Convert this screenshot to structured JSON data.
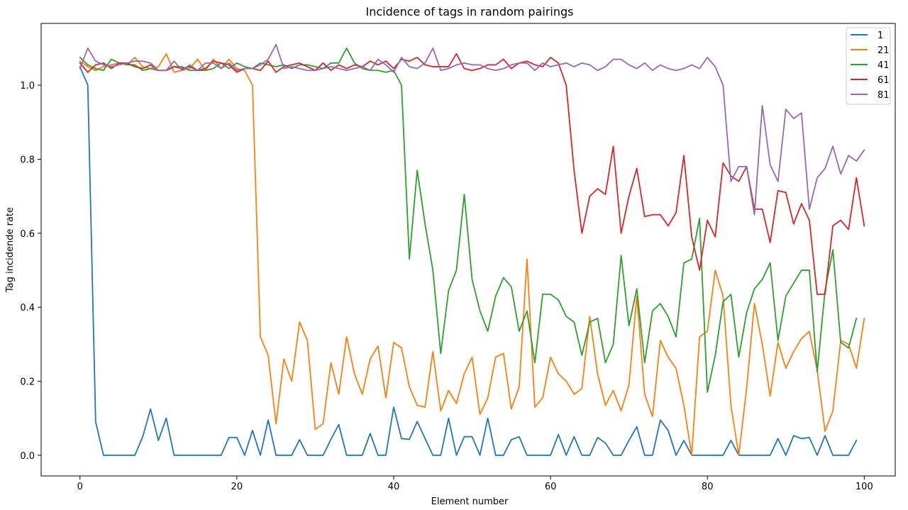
{
  "chart_data": {
    "type": "line",
    "title": "Incidence of tags in random pairings",
    "xlabel": "Element number",
    "ylabel": "Tag incidende rate",
    "xlim": [
      -4.95,
      103.95
    ],
    "ylim": [
      -0.056,
      1.167
    ],
    "xticks": [
      0,
      20,
      40,
      60,
      80,
      100
    ],
    "yticks": [
      0.0,
      0.2,
      0.4,
      0.6,
      0.8,
      1.0
    ],
    "xtick_labels": [
      "0",
      "20",
      "40",
      "60",
      "80",
      "100"
    ],
    "ytick_labels": [
      "0.0",
      "0.2",
      "0.4",
      "0.6",
      "0.8",
      "1.0"
    ],
    "grid": false,
    "legend": "top-right",
    "series": [
      {
        "name": "1",
        "color": "#1f77b4",
        "values": [
          1.05,
          1.0,
          0.09,
          0.0,
          0.0,
          0.0,
          0.0,
          0.0,
          0.05,
          0.125,
          0.04,
          0.1,
          0.0,
          0.0,
          0.0,
          0.0,
          0.0,
          0.0,
          0.0,
          0.048,
          0.048,
          0.0,
          0.067,
          0.0,
          0.095,
          0.0,
          0.0,
          0.0,
          0.042,
          0.0,
          0.0,
          0.0,
          0.043,
          0.083,
          0.0,
          0.0,
          0.0,
          0.059,
          0.0,
          0.0,
          0.13,
          0.045,
          0.043,
          0.091,
          0.045,
          0.0,
          0.0,
          0.1,
          0.0,
          0.05,
          0.05,
          0.0,
          0.1,
          0.0,
          0.0,
          0.042,
          0.05,
          0.0,
          0.0,
          0.0,
          0.0,
          0.056,
          0.0,
          0.05,
          0.0,
          0.0,
          0.048,
          0.033,
          0.0,
          0.0,
          0.04,
          0.077,
          0.0,
          0.0,
          0.095,
          0.067,
          0.0,
          0.04,
          0.0,
          0.0,
          0.0,
          0.0,
          0.0,
          0.04,
          0.0,
          0.0,
          0.0,
          0.0,
          0.0,
          0.045,
          0.0,
          0.053,
          0.045,
          0.048,
          0.0,
          0.053,
          0.0,
          0.0,
          0.0,
          0.04
        ]
      },
      {
        "name": "21",
        "color": "#ff7f0e",
        "values": [
          1.065,
          1.05,
          1.04,
          1.05,
          1.055,
          1.06,
          1.055,
          1.075,
          1.05,
          1.045,
          1.05,
          1.085,
          1.035,
          1.04,
          1.045,
          1.07,
          1.04,
          1.07,
          1.045,
          1.07,
          1.045,
          1.04,
          1.0,
          0.32,
          0.27,
          0.085,
          0.26,
          0.2,
          0.36,
          0.31,
          0.07,
          0.085,
          0.25,
          0.165,
          0.32,
          0.22,
          0.165,
          0.26,
          0.295,
          0.155,
          0.305,
          0.29,
          0.185,
          0.135,
          0.13,
          0.28,
          0.12,
          0.175,
          0.14,
          0.22,
          0.265,
          0.11,
          0.155,
          0.265,
          0.275,
          0.125,
          0.185,
          0.53,
          0.13,
          0.155,
          0.265,
          0.22,
          0.2,
          0.165,
          0.18,
          0.375,
          0.22,
          0.135,
          0.175,
          0.12,
          0.19,
          0.43,
          0.165,
          0.105,
          0.31,
          0.265,
          0.235,
          0.135,
          0.0,
          0.32,
          0.335,
          0.5,
          0.43,
          0.135,
          0.0,
          0.18,
          0.41,
          0.3,
          0.16,
          0.305,
          0.235,
          0.28,
          0.315,
          0.335,
          0.23,
          0.065,
          0.12,
          0.31,
          0.3,
          0.235,
          0.37
        ]
      },
      {
        "name": "41",
        "color": "#2ca02c",
        "values": [
          1.075,
          1.055,
          1.045,
          1.04,
          1.07,
          1.06,
          1.055,
          1.055,
          1.04,
          1.045,
          1.04,
          1.04,
          1.05,
          1.05,
          1.04,
          1.04,
          1.04,
          1.045,
          1.06,
          1.045,
          1.06,
          1.05,
          1.045,
          1.06,
          1.055,
          1.05,
          1.055,
          1.045,
          1.055,
          1.055,
          1.05,
          1.045,
          1.06,
          1.06,
          1.1,
          1.06,
          1.045,
          1.04,
          1.04,
          1.035,
          1.04,
          1.0,
          0.53,
          0.77,
          0.625,
          0.5,
          0.275,
          0.445,
          0.5,
          0.705,
          0.475,
          0.39,
          0.335,
          0.43,
          0.48,
          0.455,
          0.335,
          0.39,
          0.25,
          0.435,
          0.435,
          0.42,
          0.375,
          0.36,
          0.27,
          0.36,
          0.37,
          0.25,
          0.3,
          0.54,
          0.35,
          0.45,
          0.25,
          0.39,
          0.41,
          0.375,
          0.32,
          0.52,
          0.53,
          0.64,
          0.17,
          0.27,
          0.415,
          0.435,
          0.265,
          0.385,
          0.45,
          0.475,
          0.52,
          0.31,
          0.43,
          0.465,
          0.5,
          0.5,
          0.225,
          0.445,
          0.555,
          0.305,
          0.29,
          0.37
        ]
      },
      {
        "name": "61",
        "color": "#d62728",
        "values": [
          1.06,
          1.035,
          1.055,
          1.06,
          1.045,
          1.06,
          1.06,
          1.05,
          1.045,
          1.055,
          1.04,
          1.04,
          1.05,
          1.045,
          1.05,
          1.04,
          1.045,
          1.065,
          1.06,
          1.055,
          1.035,
          1.045,
          1.045,
          1.04,
          1.065,
          1.035,
          1.05,
          1.055,
          1.06,
          1.05,
          1.04,
          1.06,
          1.04,
          1.055,
          1.045,
          1.055,
          1.05,
          1.065,
          1.055,
          1.065,
          1.045,
          1.07,
          1.065,
          1.075,
          1.055,
          1.05,
          1.05,
          1.05,
          1.085,
          1.045,
          1.04,
          1.045,
          1.055,
          1.055,
          1.07,
          1.045,
          1.06,
          1.065,
          1.055,
          1.05,
          1.075,
          1.06,
          1.0,
          0.77,
          0.6,
          0.7,
          0.72,
          0.705,
          0.835,
          0.6,
          0.7,
          0.775,
          0.645,
          0.65,
          0.65,
          0.62,
          0.655,
          0.81,
          0.59,
          0.5,
          0.635,
          0.59,
          0.79,
          0.755,
          0.74,
          0.78,
          0.665,
          0.665,
          0.575,
          0.715,
          0.71,
          0.625,
          0.68,
          0.635,
          0.435,
          0.435,
          0.62,
          0.635,
          0.61,
          0.75,
          0.62
        ]
      },
      {
        "name": "81",
        "color": "#9467bd",
        "values": [
          1.045,
          1.1,
          1.065,
          1.055,
          1.05,
          1.055,
          1.06,
          1.065,
          1.065,
          1.06,
          1.04,
          1.04,
          1.065,
          1.04,
          1.055,
          1.04,
          1.06,
          1.06,
          1.045,
          1.06,
          1.04,
          1.045,
          1.045,
          1.055,
          1.07,
          1.11,
          1.045,
          1.05,
          1.045,
          1.04,
          1.04,
          1.045,
          1.05,
          1.045,
          1.04,
          1.045,
          1.05,
          1.04,
          1.07,
          1.055,
          1.035,
          1.075,
          1.05,
          1.045,
          1.06,
          1.1,
          1.04,
          1.045,
          1.055,
          1.06,
          1.055,
          1.055,
          1.045,
          1.04,
          1.045,
          1.055,
          1.06,
          1.06,
          1.04,
          1.06,
          1.05,
          1.055,
          1.06,
          1.05,
          1.06,
          1.055,
          1.04,
          1.05,
          1.07,
          1.07,
          1.055,
          1.045,
          1.06,
          1.04,
          1.055,
          1.045,
          1.04,
          1.045,
          1.055,
          1.045,
          1.075,
          1.05,
          1.0,
          0.74,
          0.78,
          0.78,
          0.65,
          0.945,
          0.785,
          0.74,
          0.935,
          0.91,
          0.925,
          0.665,
          0.75,
          0.775,
          0.835,
          0.76,
          0.81,
          0.795,
          0.825
        ]
      }
    ]
  }
}
